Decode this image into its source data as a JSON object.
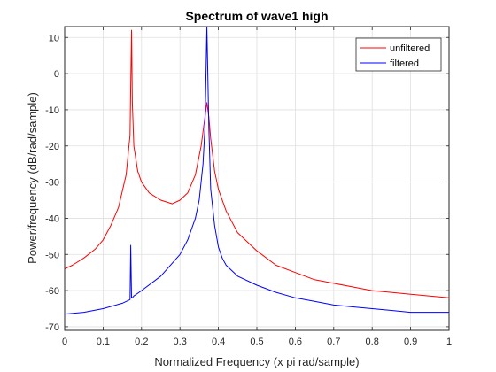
{
  "chart_data": {
    "type": "line",
    "title": "Spectrum of wave1 high",
    "xlabel": "Normalized Frequency (x pi rad/sample)",
    "ylabel": "Power/frequency (dB/rad/sample)",
    "xlim": [
      0,
      1
    ],
    "ylim": [
      -71,
      13
    ],
    "xticks": [
      0,
      0.1,
      0.2,
      0.3,
      0.4,
      0.5,
      0.6,
      0.7,
      0.8,
      0.9,
      1
    ],
    "xtick_labels": [
      "0",
      "0.1",
      "0.2",
      "0.3",
      "0.4",
      "0.5",
      "0.6",
      "0.7",
      "0.8",
      "0.9",
      "1"
    ],
    "yticks": [
      10,
      0,
      -10,
      -20,
      -30,
      -40,
      -50,
      -60,
      -70
    ],
    "ytick_labels": [
      "10",
      "0",
      "-10",
      "-20",
      "-30",
      "-40",
      "-50",
      "-60",
      "-70"
    ],
    "grid": true,
    "legend_position": "top-right",
    "series": [
      {
        "name": "unfiltered",
        "color": "#ff0000",
        "x": [
          0,
          0.02,
          0.05,
          0.08,
          0.1,
          0.12,
          0.14,
          0.16,
          0.17,
          0.174,
          0.176,
          0.18,
          0.19,
          0.2,
          0.22,
          0.25,
          0.28,
          0.3,
          0.32,
          0.34,
          0.355,
          0.365,
          0.37,
          0.375,
          0.38,
          0.39,
          0.4,
          0.42,
          0.45,
          0.5,
          0.55,
          0.6,
          0.65,
          0.7,
          0.75,
          0.8,
          0.85,
          0.9,
          0.95,
          1
        ],
        "y": [
          -54,
          -53,
          -51,
          -48.5,
          -46,
          -42,
          -37,
          -28,
          -17,
          12,
          -8,
          -20,
          -27,
          -30,
          -33,
          -35,
          -36,
          -35,
          -33,
          -28,
          -20,
          -12,
          -8,
          -12,
          -18,
          -27,
          -32,
          -38,
          -44,
          -49,
          -53,
          -55,
          -57,
          -58,
          -59,
          -60,
          -60.5,
          -61,
          -61.5,
          -62
        ]
      },
      {
        "name": "filtered",
        "color": "#0000ff",
        "x": [
          0,
          0.05,
          0.1,
          0.15,
          0.17,
          0.172,
          0.174,
          0.176,
          0.18,
          0.2,
          0.25,
          0.3,
          0.32,
          0.34,
          0.35,
          0.36,
          0.365,
          0.37,
          0.375,
          0.38,
          0.39,
          0.4,
          0.41,
          0.42,
          0.45,
          0.5,
          0.55,
          0.6,
          0.65,
          0.7,
          0.75,
          0.8,
          0.85,
          0.9,
          0.95,
          1
        ],
        "y": [
          -66.5,
          -66,
          -65,
          -63.5,
          -62.5,
          -47.5,
          -62,
          -62,
          -61.5,
          -60,
          -56,
          -50,
          -46,
          -40,
          -35,
          -25,
          -15,
          13,
          -15,
          -32,
          -42,
          -48,
          -51,
          -53,
          -56,
          -58.5,
          -60.5,
          -62,
          -63,
          -64,
          -64.5,
          -65,
          -65.5,
          -66,
          -66,
          -66
        ]
      }
    ]
  }
}
